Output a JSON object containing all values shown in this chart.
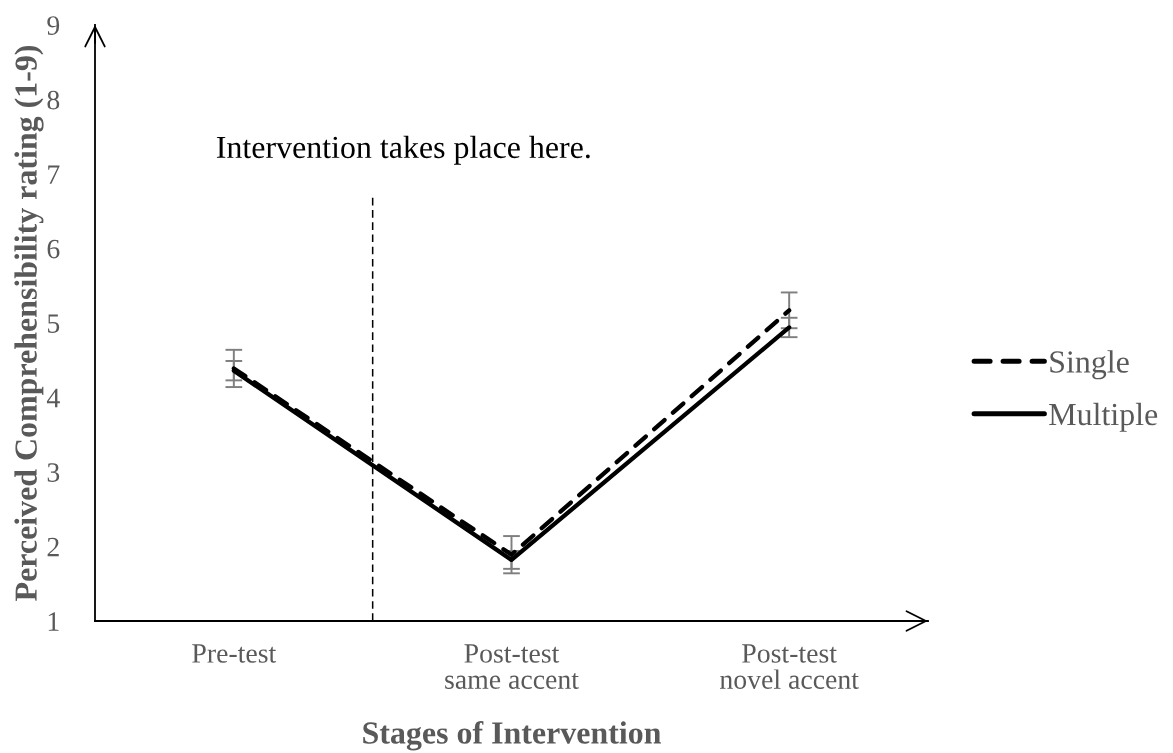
{
  "chart_data": {
    "type": "line",
    "categories": [
      "Pre-test",
      "Post-test\nsame accent",
      "Post-test\nnovel accent"
    ],
    "xlabel": "Stages of Intervention",
    "ylabel": "Perceived Comprehensibility rating (1-9)",
    "ylim": [
      1,
      9
    ],
    "yticks": [
      1,
      2,
      3,
      4,
      5,
      6,
      7,
      8,
      9
    ],
    "series": [
      {
        "name": "Single",
        "color": "#000000",
        "line_style": "dashed",
        "values": [
          4.39,
          1.89,
          5.17
        ],
        "errors": [
          0.25,
          0.25,
          0.24
        ]
      },
      {
        "name": "Multiple",
        "color": "#000000",
        "line_style": "solid",
        "values": [
          4.36,
          1.82,
          4.94
        ],
        "errors": [
          0.13,
          0.12,
          0.13
        ]
      }
    ],
    "annotations": [
      "Intervention takes place here."
    ],
    "legend": "right"
  }
}
